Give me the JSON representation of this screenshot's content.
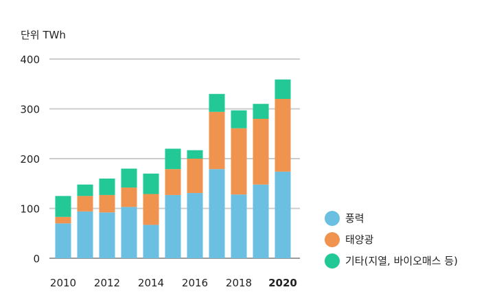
{
  "chart_data": {
    "type": "bar",
    "stacked": true,
    "unit_label": "단위 TWh",
    "categories": [
      "2010",
      "2011",
      "2012",
      "2013",
      "2014",
      "2015",
      "2016",
      "2017",
      "2018",
      "2019",
      "2020"
    ],
    "x_tick_labels": [
      "2010",
      "2012",
      "2014",
      "2016",
      "2018",
      "2020"
    ],
    "highlighted_tick": "2020",
    "y_ticks": [
      "0",
      "100",
      "200",
      "300",
      "400"
    ],
    "ylim": [
      0,
      400
    ],
    "grid": true,
    "legend_position": "right",
    "series": [
      {
        "name": "풍력",
        "color": "#6bbfe0",
        "values": [
          70,
          94,
          92,
          103,
          67,
          127,
          131,
          179,
          128,
          148,
          174
        ]
      },
      {
        "name": "태양광",
        "color": "#f0934f",
        "values": [
          13,
          31,
          35,
          39,
          62,
          52,
          69,
          115,
          133,
          132,
          146
        ]
      },
      {
        "name": "기타(지열, 바이오매스 등)",
        "color": "#22c896",
        "values": [
          42,
          23,
          33,
          38,
          41,
          41,
          17,
          36,
          36,
          30,
          39
        ]
      }
    ]
  }
}
